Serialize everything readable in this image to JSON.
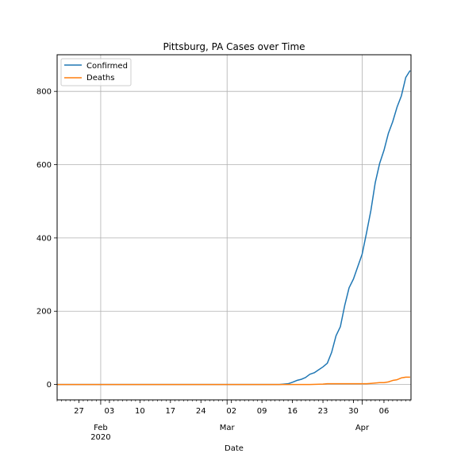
{
  "chart_data": {
    "type": "line",
    "title": "Pittsburg, PA Cases over Time",
    "xlabel": "Date",
    "ylabel": "",
    "x_range": [
      "2020-01-22",
      "2020-04-10"
    ],
    "ylim": [
      -42,
      900
    ],
    "grid": true,
    "legend_position": "top-left",
    "yticks": [
      0,
      200,
      400,
      600,
      800
    ],
    "xticks": [
      {
        "date": "2020-01-27",
        "day": "27",
        "month": ""
      },
      {
        "date": "2020-02-01",
        "day": "",
        "month": "Feb",
        "year": "2020",
        "major": true
      },
      {
        "date": "2020-02-03",
        "day": "03",
        "month": ""
      },
      {
        "date": "2020-02-10",
        "day": "10",
        "month": ""
      },
      {
        "date": "2020-02-17",
        "day": "17",
        "month": ""
      },
      {
        "date": "2020-02-24",
        "day": "24",
        "month": ""
      },
      {
        "date": "2020-03-01",
        "day": "",
        "month": "Mar",
        "major": true
      },
      {
        "date": "2020-03-02",
        "day": "02",
        "month": ""
      },
      {
        "date": "2020-03-09",
        "day": "09",
        "month": ""
      },
      {
        "date": "2020-03-16",
        "day": "16",
        "month": ""
      },
      {
        "date": "2020-03-23",
        "day": "23",
        "month": ""
      },
      {
        "date": "2020-03-30",
        "day": "30",
        "month": ""
      },
      {
        "date": "2020-04-01",
        "day": "",
        "month": "Apr",
        "major": true
      },
      {
        "date": "2020-04-06",
        "day": "06",
        "month": ""
      }
    ],
    "series": [
      {
        "name": "Confirmed",
        "color": "#1f77b4",
        "points": [
          [
            "2020-01-22",
            0
          ],
          [
            "2020-03-13",
            0
          ],
          [
            "2020-03-14",
            1
          ],
          [
            "2020-03-15",
            2
          ],
          [
            "2020-03-16",
            6
          ],
          [
            "2020-03-17",
            11
          ],
          [
            "2020-03-18",
            14
          ],
          [
            "2020-03-19",
            19
          ],
          [
            "2020-03-20",
            28
          ],
          [
            "2020-03-21",
            32
          ],
          [
            "2020-03-22",
            40
          ],
          [
            "2020-03-23",
            48
          ],
          [
            "2020-03-24",
            58
          ],
          [
            "2020-03-25",
            88
          ],
          [
            "2020-03-26",
            133
          ],
          [
            "2020-03-27",
            158
          ],
          [
            "2020-03-28",
            216
          ],
          [
            "2020-03-29",
            264
          ],
          [
            "2020-03-30",
            288
          ],
          [
            "2020-03-31",
            322
          ],
          [
            "2020-04-01",
            356
          ],
          [
            "2020-04-02",
            414
          ],
          [
            "2020-04-03",
            475
          ],
          [
            "2020-04-04",
            551
          ],
          [
            "2020-04-05",
            603
          ],
          [
            "2020-04-06",
            639
          ],
          [
            "2020-04-07",
            685
          ],
          [
            "2020-04-08",
            717
          ],
          [
            "2020-04-09",
            757
          ],
          [
            "2020-04-10",
            788
          ],
          [
            "2020-04-11",
            838
          ],
          [
            "2020-04-12",
            857
          ]
        ]
      },
      {
        "name": "Deaths",
        "color": "#ff7f0e",
        "points": [
          [
            "2020-01-22",
            0
          ],
          [
            "2020-03-20",
            0
          ],
          [
            "2020-03-23",
            1
          ],
          [
            "2020-03-24",
            2
          ],
          [
            "2020-04-02",
            2
          ],
          [
            "2020-04-03",
            3
          ],
          [
            "2020-04-04",
            4
          ],
          [
            "2020-04-05",
            5
          ],
          [
            "2020-04-06",
            5
          ],
          [
            "2020-04-07",
            7
          ],
          [
            "2020-04-08",
            11
          ],
          [
            "2020-04-09",
            13
          ],
          [
            "2020-04-10",
            18
          ],
          [
            "2020-04-11",
            20
          ],
          [
            "2020-04-12",
            20
          ]
        ]
      }
    ]
  }
}
